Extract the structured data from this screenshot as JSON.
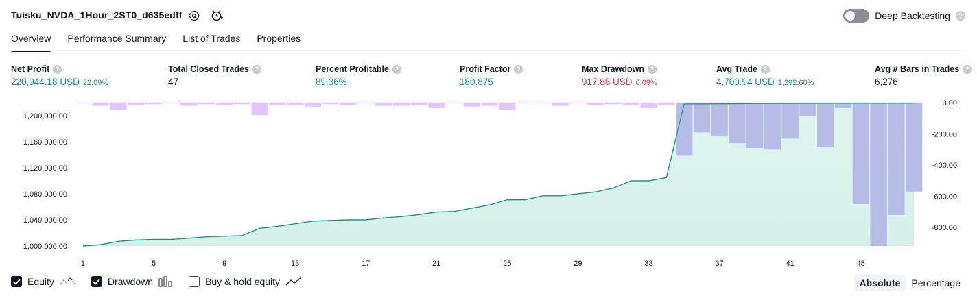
{
  "header": {
    "title": "Tuisku_NVDA_1Hour_2ST0_d635edff",
    "deep_backtesting_label": "Deep Backtesting",
    "help_glyph": "?"
  },
  "tabs": [
    {
      "label": "Overview",
      "active": true
    },
    {
      "label": "Performance Summary",
      "active": false
    },
    {
      "label": "List of Trades",
      "active": false
    },
    {
      "label": "Properties",
      "active": false
    }
  ],
  "metrics": [
    {
      "label": "Net Profit",
      "value": "220,944.18 USD",
      "sub": "22.09%",
      "tone": "green"
    },
    {
      "label": "Total Closed Trades",
      "value": "47",
      "sub": "",
      "tone": "dark"
    },
    {
      "label": "Percent Profitable",
      "value": "89.36%",
      "sub": "",
      "tone": "green"
    },
    {
      "label": "Profit Factor",
      "value": "180.875",
      "sub": "",
      "tone": "green"
    },
    {
      "label": "Max Drawdown",
      "value": "917.88 USD",
      "sub": "0.09%",
      "tone": "red"
    },
    {
      "label": "Avg Trade",
      "value": "4,700.94 USD",
      "sub": "1,292.60%",
      "tone": "green"
    },
    {
      "label": "Avg # Bars in Trades",
      "value": "6,276",
      "sub": "",
      "tone": "dark"
    }
  ],
  "colors": {
    "green": "#089981",
    "red": "#f23645",
    "equity_fill": "#d6f0e9",
    "drawdown_bar": "#e0c2fb",
    "overlap_bar": "#b3b8e6"
  },
  "chart_data": {
    "type": "area",
    "x_ticks": [
      1,
      5,
      9,
      13,
      17,
      21,
      25,
      29,
      33,
      37,
      41,
      45
    ],
    "left_axis_ticks": [
      "1,200,000.00",
      "1,160,000.00",
      "1,120,000.00",
      "1,080,000.00",
      "1,040,000.00",
      "1,000,000.00"
    ],
    "right_axis_ticks": [
      "0.00",
      "-200.00",
      "-400.00",
      "-600.00",
      "-800.00"
    ],
    "left_ylim": [
      1000000,
      1220000
    ],
    "right_ylim": [
      -917.88,
      0
    ],
    "series": [
      {
        "name": "Equity",
        "axis": "left",
        "x": [
          1,
          2,
          3,
          4,
          5,
          6,
          7,
          8,
          9,
          10,
          11,
          12,
          13,
          14,
          15,
          16,
          17,
          18,
          19,
          20,
          21,
          22,
          23,
          24,
          25,
          26,
          27,
          28,
          29,
          30,
          31,
          32,
          33,
          34,
          35,
          36,
          37,
          38,
          39,
          40,
          41,
          42,
          43,
          44,
          45,
          46,
          47,
          48
        ],
        "values": [
          1000000,
          1002000,
          1007000,
          1009000,
          1010000,
          1010000,
          1012000,
          1014000,
          1015000,
          1016000,
          1027000,
          1030000,
          1034000,
          1038000,
          1039000,
          1040000,
          1040000,
          1043000,
          1045000,
          1048000,
          1052000,
          1053000,
          1058000,
          1063000,
          1071000,
          1071000,
          1077000,
          1077000,
          1080000,
          1083000,
          1089000,
          1100000,
          1100000,
          1105000,
          1218000,
          1218000,
          1218200,
          1218400,
          1218600,
          1218700,
          1218800,
          1218900,
          1219000,
          1219100,
          1219200,
          1219100,
          1219200,
          1219000
        ]
      },
      {
        "name": "Drawdown",
        "axis": "right",
        "x": [
          1,
          2,
          3,
          4,
          5,
          6,
          7,
          8,
          9,
          10,
          11,
          12,
          13,
          14,
          15,
          16,
          17,
          18,
          19,
          20,
          21,
          22,
          23,
          24,
          25,
          26,
          27,
          28,
          29,
          30,
          31,
          32,
          33,
          34,
          35,
          36,
          37,
          38,
          39,
          40,
          41,
          42,
          43,
          44,
          45,
          46,
          47,
          48
        ],
        "values": [
          -5,
          -20,
          -45,
          -15,
          -10,
          -5,
          -20,
          -10,
          -15,
          -10,
          -80,
          -15,
          -15,
          -25,
          -10,
          -15,
          -5,
          -20,
          -20,
          -15,
          -30,
          -5,
          -25,
          -20,
          -45,
          -5,
          -5,
          -20,
          -5,
          -15,
          -10,
          -15,
          -30,
          -15,
          -340,
          -190,
          -210,
          -260,
          -290,
          -300,
          -230,
          -85,
          -285,
          -35,
          -650,
          -917.88,
          -720,
          -570
        ]
      }
    ]
  },
  "legend": [
    {
      "label": "Equity",
      "checked": true,
      "icon": "equity-icon"
    },
    {
      "label": "Drawdown",
      "checked": true,
      "icon": "bars-icon"
    },
    {
      "label": "Buy & hold equity",
      "checked": false,
      "icon": "line-icon"
    }
  ],
  "scale_toggle": {
    "absolute": "Absolute",
    "percentage": "Percentage",
    "selected": "absolute"
  }
}
